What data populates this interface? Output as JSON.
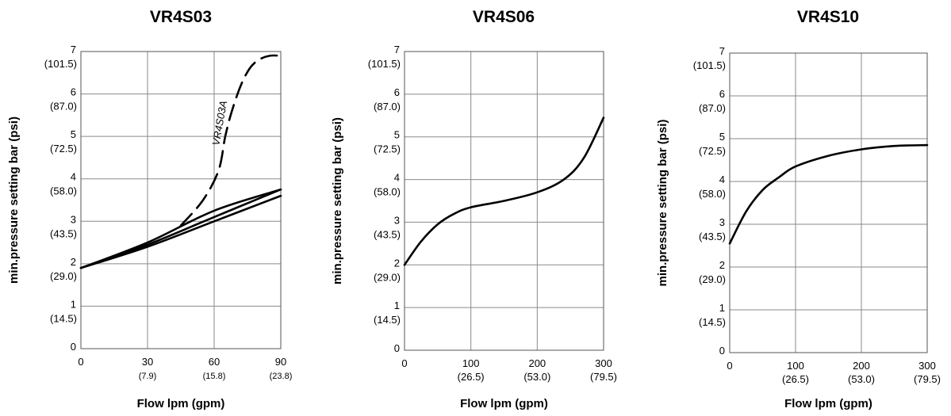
{
  "chart_data": [
    {
      "type": "line",
      "title": "VR4S03",
      "xlabel": "Flow lpm (gpm)",
      "ylabel": "min.pressure setting bar (psi)",
      "xlim": [
        0,
        90
      ],
      "ylim": [
        0,
        7
      ],
      "x_ticks": [
        {
          "value": 0,
          "label": "0",
          "sub": ""
        },
        {
          "value": 30,
          "label": "30",
          "sub": "(7.9)"
        },
        {
          "value": 60,
          "label": "60",
          "sub": "(15.8)"
        },
        {
          "value": 90,
          "label": "90",
          "sub": "(23.8)"
        }
      ],
      "y_ticks": [
        {
          "value": 0,
          "label": "0",
          "sub": ""
        },
        {
          "value": 1,
          "label": "1",
          "sub": "(14.5)"
        },
        {
          "value": 2,
          "label": "2",
          "sub": "(29.0)"
        },
        {
          "value": 3,
          "label": "3",
          "sub": "(43.5)"
        },
        {
          "value": 4,
          "label": "4",
          "sub": "(58.0)"
        },
        {
          "value": 5,
          "label": "5",
          "sub": "(72.5)"
        },
        {
          "value": 6,
          "label": "6",
          "sub": "(87.0)"
        },
        {
          "value": 7,
          "label": "7",
          "sub": "(101.5)"
        }
      ],
      "grid": true,
      "series": [
        {
          "style": "solid",
          "x": [
            0,
            30,
            60,
            90
          ],
          "y": [
            1.9,
            2.5,
            3.25,
            3.75
          ]
        },
        {
          "style": "solid",
          "x": [
            0,
            30,
            60,
            90
          ],
          "y": [
            1.9,
            2.45,
            3.1,
            3.75
          ]
        },
        {
          "style": "solid",
          "x": [
            0,
            30,
            60,
            90
          ],
          "y": [
            1.9,
            2.4,
            3.0,
            3.6
          ]
        },
        {
          "name": "VR4S03A",
          "style": "dashed",
          "x": [
            45,
            55,
            62,
            65,
            68,
            72,
            76,
            80,
            85,
            90
          ],
          "y": [
            2.9,
            3.5,
            4.2,
            5.0,
            5.6,
            6.2,
            6.6,
            6.8,
            6.9,
            6.9
          ]
        }
      ],
      "annotations": [
        {
          "text": "VR4S03A",
          "x": 64,
          "y": 5.3
        }
      ]
    },
    {
      "type": "line",
      "title": "VR4S06",
      "xlabel": "Flow lpm (gpm)",
      "ylabel": "min.pressure setting bar (psi)",
      "xlim": [
        0,
        300
      ],
      "ylim": [
        0,
        7
      ],
      "x_ticks": [
        {
          "value": 0,
          "label": "0",
          "sub": ""
        },
        {
          "value": 100,
          "label": "100",
          "sub": "(26.5)"
        },
        {
          "value": 200,
          "label": "200",
          "sub": "(53.0)"
        },
        {
          "value": 300,
          "label": "300",
          "sub": "(79.5)"
        }
      ],
      "y_ticks": [
        {
          "value": 0,
          "label": "0",
          "sub": ""
        },
        {
          "value": 1,
          "label": "1",
          "sub": "(14.5)"
        },
        {
          "value": 2,
          "label": "2",
          "sub": "(29.0)"
        },
        {
          "value": 3,
          "label": "3",
          "sub": "(43.5)"
        },
        {
          "value": 4,
          "label": "4",
          "sub": "(58.0)"
        },
        {
          "value": 5,
          "label": "5",
          "sub": "(72.5)"
        },
        {
          "value": 6,
          "label": "6",
          "sub": "(87.0)"
        },
        {
          "value": 7,
          "label": "7",
          "sub": "(101.5)"
        }
      ],
      "grid": true,
      "series": [
        {
          "style": "solid",
          "x": [
            0,
            25,
            50,
            75,
            100,
            150,
            200,
            240,
            270,
            300
          ],
          "y": [
            2.0,
            2.55,
            2.95,
            3.2,
            3.35,
            3.5,
            3.7,
            4.0,
            4.5,
            5.45
          ]
        }
      ]
    },
    {
      "type": "line",
      "title": "VR4S10",
      "xlabel": "Flow lpm (gpm)",
      "ylabel": "min.pressure setting bar (psi)",
      "xlim": [
        0,
        300
      ],
      "ylim": [
        0,
        7
      ],
      "x_ticks": [
        {
          "value": 0,
          "label": "0",
          "sub": ""
        },
        {
          "value": 100,
          "label": "100",
          "sub": "(26.5)"
        },
        {
          "value": 200,
          "label": "200",
          "sub": "(53.0)"
        },
        {
          "value": 300,
          "label": "300",
          "sub": "(79.5)"
        }
      ],
      "y_ticks": [
        {
          "value": 0,
          "label": "0",
          "sub": ""
        },
        {
          "value": 1,
          "label": "1",
          "sub": "(14.5)"
        },
        {
          "value": 2,
          "label": "2",
          "sub": "(29.0)"
        },
        {
          "value": 3,
          "label": "3",
          "sub": "(43.5)"
        },
        {
          "value": 4,
          "label": "4",
          "sub": "(58.0)"
        },
        {
          "value": 5,
          "label": "5",
          "sub": "(72.5)"
        },
        {
          "value": 6,
          "label": "6",
          "sub": "(87.0)"
        },
        {
          "value": 7,
          "label": "7",
          "sub": "(101.5)"
        }
      ],
      "grid": true,
      "series": [
        {
          "style": "solid",
          "x": [
            0,
            25,
            50,
            75,
            100,
            150,
            200,
            250,
            300
          ],
          "y": [
            2.55,
            3.3,
            3.8,
            4.1,
            4.35,
            4.6,
            4.75,
            4.83,
            4.85
          ]
        }
      ]
    }
  ]
}
